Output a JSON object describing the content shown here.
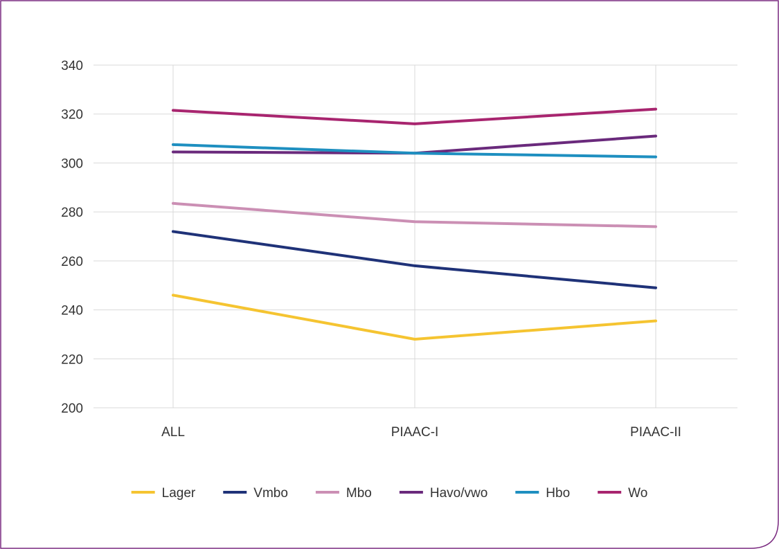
{
  "chart_data": {
    "type": "line",
    "title": "",
    "xlabel": "",
    "ylabel": "",
    "categories": [
      "ALL",
      "PIAAC-I",
      "PIAAC-II"
    ],
    "ylim": [
      200,
      340
    ],
    "yticks": [
      200,
      220,
      240,
      260,
      280,
      300,
      320,
      340
    ],
    "grid": true,
    "legend_position": "bottom",
    "series": [
      {
        "name": "Lager",
        "color": "#F5C431",
        "values": [
          246,
          228,
          235.5
        ]
      },
      {
        "name": "Vmbo",
        "color": "#1F3278",
        "values": [
          272,
          258,
          249
        ]
      },
      {
        "name": "Mbo",
        "color": "#CB8FB4",
        "values": [
          283.5,
          276,
          274
        ]
      },
      {
        "name": "Havo/vwo",
        "color": "#6A2A7C",
        "values": [
          304.5,
          304,
          311
        ]
      },
      {
        "name": "Hbo",
        "color": "#1E8FC0",
        "values": [
          307.5,
          304,
          302.5
        ]
      },
      {
        "name": "Wo",
        "color": "#A8256F",
        "values": [
          321.5,
          316,
          322
        ]
      }
    ]
  },
  "frame_color": "#7A2A80"
}
